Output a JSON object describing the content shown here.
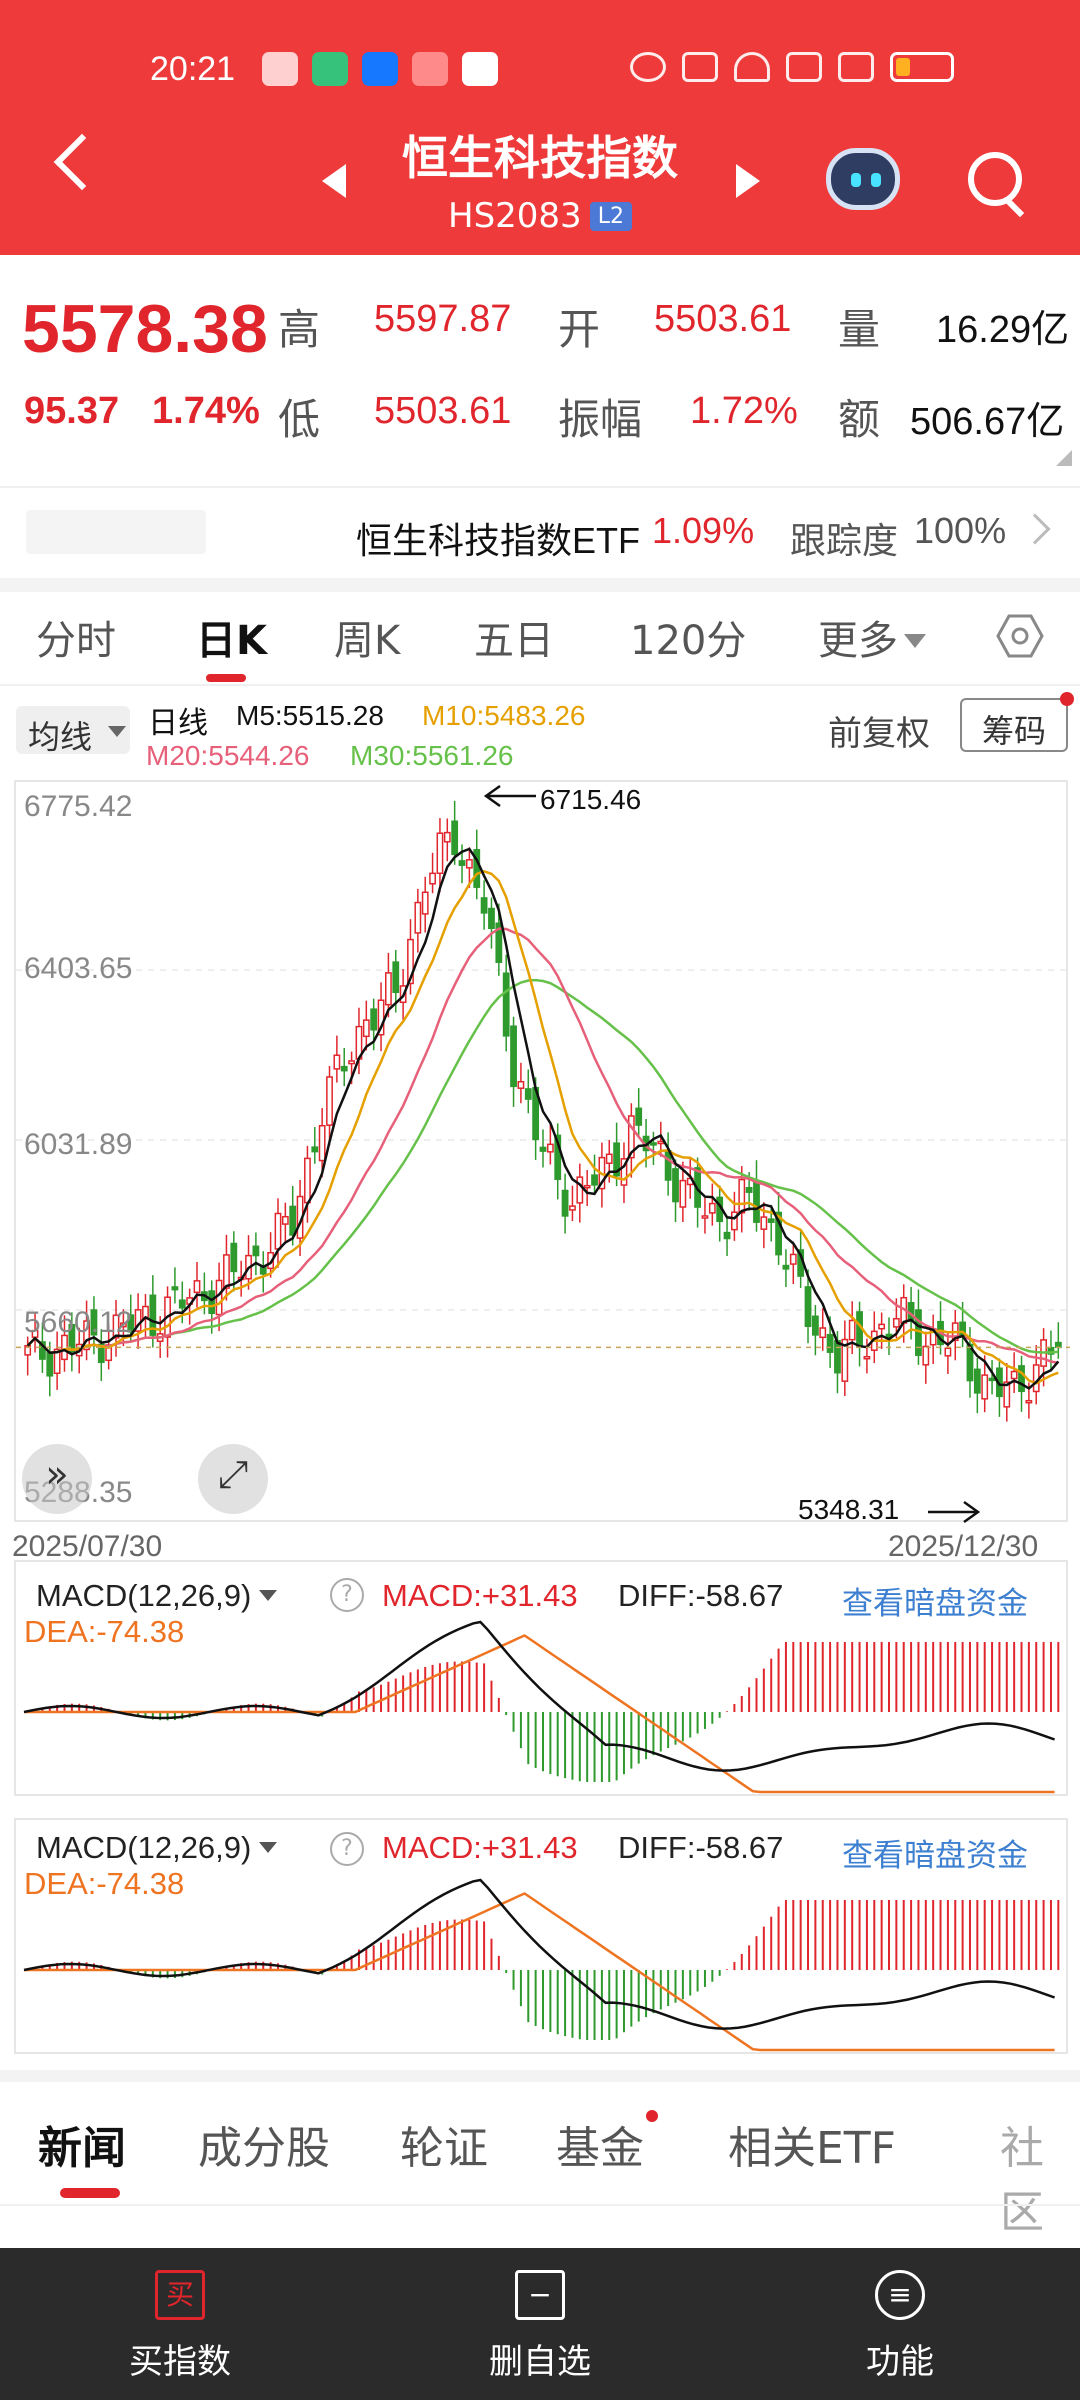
{
  "status_bar": {
    "time": "20:21"
  },
  "header": {
    "title": "恒生科技指数",
    "code": "HS2083",
    "level_badge": "L2"
  },
  "quote": {
    "price": "5578.38",
    "change": "95.37",
    "change_pct": "1.74%",
    "high_label": "高",
    "high": "5597.87",
    "low_label": "低",
    "low": "5503.61",
    "open_label": "开",
    "open": "5503.61",
    "amplitude_label": "振幅",
    "amplitude": "1.72%",
    "volume_label": "量",
    "volume": "16.29亿",
    "turnover_label": "额",
    "turnover": "506.67亿"
  },
  "etf": {
    "name": "恒生科技指数ETF",
    "change": "1.09%",
    "tracking_label": "跟踪度",
    "tracking": "100%"
  },
  "period_tabs": [
    "分时",
    "日K",
    "周K",
    "五日",
    "120分",
    "更多"
  ],
  "ma_bar": {
    "selector": "均线",
    "line_type": "日线",
    "m5": "M5:5515.28",
    "m10": "M10:5483.26",
    "m20": "M20:5544.26",
    "m30": "M30:5561.26",
    "adjust": "前复权",
    "chips": "筹码"
  },
  "chart_data": {
    "type": "candlestick",
    "y_ticks": [
      "6775.42",
      "6403.65",
      "6031.89",
      "5660.12",
      "5288.35"
    ],
    "ylim": [
      5288.35,
      6775.42
    ],
    "max_annotation": "6715.46",
    "min_annotation": "5348.31",
    "start_date": "2025/07/30",
    "end_date": "2025/12/30",
    "up_color": "#e0262c",
    "down_color": "#2e9a2e",
    "ma_colors": {
      "m5": "#111111",
      "m10": "#e5a000",
      "m20": "#e7607a",
      "m30": "#66c14a"
    },
    "last_close": 5578.38
  },
  "macd": {
    "title": "MACD(12,26,9)",
    "macd": "MACD:+31.43",
    "diff": "DIFF:-58.67",
    "dea": "DEA:-74.38",
    "link": "查看暗盘资金"
  },
  "news_tabs": [
    "新闻",
    "成分股",
    "轮证",
    "基金",
    "相关ETF",
    "社区"
  ],
  "bottom_bar": {
    "buy_icon": "买",
    "buy": "买指数",
    "remove": "删自选",
    "func": "功能"
  },
  "colors": {
    "brand_red": "#ee3a3a",
    "up": "#e0262c",
    "down": "#2e9a2e",
    "link_blue": "#3d7fd0"
  }
}
